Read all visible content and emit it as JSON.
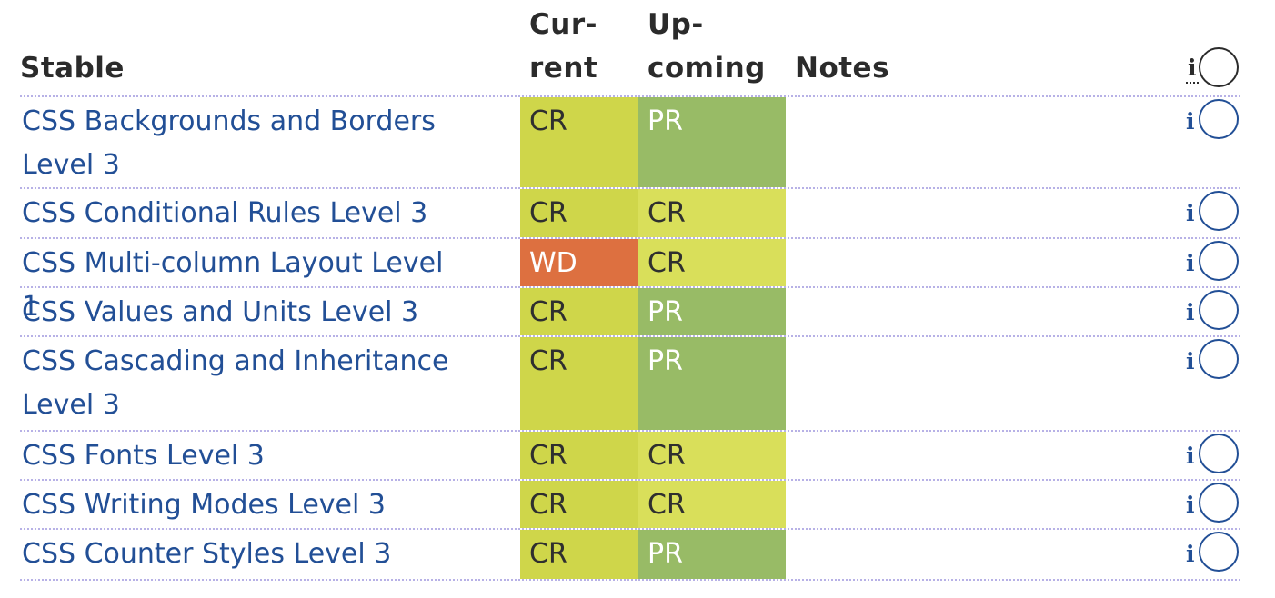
{
  "header": {
    "stable": "Stable",
    "current_line1": "Cur-",
    "current_line2": "rent",
    "upcoming_line1": "Up-",
    "upcoming_line2": "coming",
    "notes": "Notes",
    "info": "i"
  },
  "rows": [
    {
      "name": "CSS Backgrounds and Borders Level 3",
      "current": "CR",
      "upcoming": "PR",
      "notes": "",
      "info": "i"
    },
    {
      "name": "CSS Conditional Rules Level 3",
      "current": "CR",
      "upcoming": "CR",
      "notes": "",
      "info": "i"
    },
    {
      "name": "CSS Multi-column Layout Level 1",
      "current": "WD",
      "upcoming": "CR",
      "notes": "",
      "info": "i"
    },
    {
      "name": "CSS Values and Units Level 3",
      "current": "CR",
      "upcoming": "PR",
      "notes": "",
      "info": "i"
    },
    {
      "name": "CSS Cascading and Inheritance Level 3",
      "current": "CR",
      "upcoming": "PR",
      "notes": "",
      "info": "i"
    },
    {
      "name": "CSS Fonts Level 3",
      "current": "CR",
      "upcoming": "CR",
      "notes": "",
      "info": "i"
    },
    {
      "name": "CSS Writing Modes Level 3",
      "current": "CR",
      "upcoming": "CR",
      "notes": "",
      "info": "i"
    },
    {
      "name": "CSS Counter Styles Level 3",
      "current": "CR",
      "upcoming": "PR",
      "notes": "",
      "info": "i"
    }
  ],
  "colors": {
    "link": "#224f96",
    "cr_current": "#cfd64a",
    "cr_upcoming": "#d9df5a",
    "pr": "#98bb66",
    "wd": "#dd7040",
    "row_separator": "#b7b1e6"
  }
}
